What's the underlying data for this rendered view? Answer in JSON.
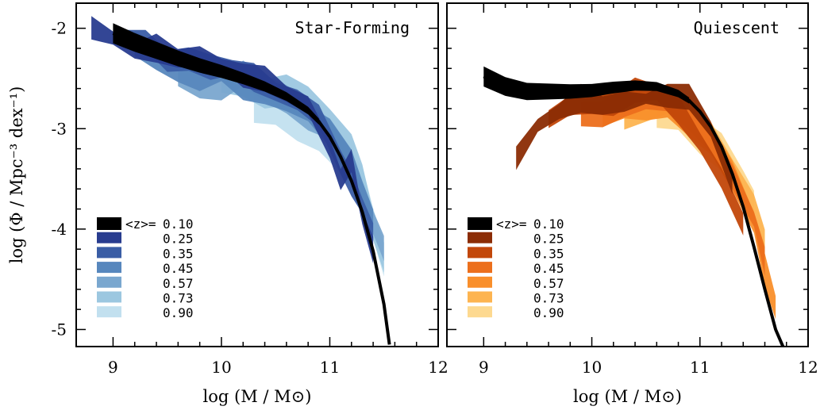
{
  "chart_data": [
    {
      "type": "area",
      "title": "Star-Forming",
      "xlabel": "log (M / M⊙)",
      "ylabel": "log (Φ / Mpc⁻³ dex⁻¹)",
      "xlim": [
        8.66,
        12.0
      ],
      "ylim": [
        -5.17,
        -1.75
      ],
      "xticks": [
        "9",
        "10",
        "11",
        "12"
      ],
      "yticks": [
        "-2",
        "-3",
        "-4",
        "-5"
      ],
      "legend": {
        "placement": "lower-left",
        "header": "<z>="
      },
      "series": [
        {
          "name": "0.10",
          "color": "#000000",
          "x": [
            9.0,
            9.2,
            9.4,
            9.6,
            9.8,
            10.0,
            10.2,
            10.4,
            10.6,
            10.8,
            10.9,
            11.0,
            11.1,
            11.2,
            11.3,
            11.4,
            11.5,
            11.55
          ],
          "y": [
            -2.05,
            -2.14,
            -2.22,
            -2.3,
            -2.37,
            -2.43,
            -2.5,
            -2.58,
            -2.68,
            -2.82,
            -2.93,
            -3.08,
            -3.28,
            -3.52,
            -3.83,
            -4.22,
            -4.75,
            -5.15
          ]
        },
        {
          "name": "0.25",
          "color": "#283c8f",
          "x": [
            8.8,
            9.0,
            9.2,
            9.4,
            9.6,
            9.8,
            10.0,
            10.2,
            10.4,
            10.6,
            10.8,
            11.0,
            11.1,
            11.2,
            11.3,
            11.4
          ],
          "y": [
            -2.0,
            -2.08,
            -2.25,
            -2.2,
            -2.28,
            -2.3,
            -2.35,
            -2.45,
            -2.52,
            -2.65,
            -2.8,
            -3.15,
            -3.5,
            -3.35,
            -3.9,
            -4.2
          ]
        },
        {
          "name": "0.35",
          "color": "#3a5da5",
          "x": [
            9.1,
            9.3,
            9.5,
            9.7,
            9.9,
            10.1,
            10.3,
            10.5,
            10.7,
            10.9,
            11.1,
            11.2,
            11.3,
            11.4
          ],
          "y": [
            -2.1,
            -2.15,
            -2.28,
            -2.3,
            -2.42,
            -2.4,
            -2.48,
            -2.6,
            -2.72,
            -2.92,
            -3.3,
            -3.55,
            -3.75,
            -4.05
          ]
        },
        {
          "name": "0.45",
          "color": "#5787bd",
          "x": [
            9.2,
            9.4,
            9.6,
            9.8,
            10.0,
            10.2,
            10.4,
            10.6,
            10.8,
            11.0,
            11.2,
            11.3,
            11.4
          ],
          "y": [
            -2.2,
            -2.25,
            -2.4,
            -2.52,
            -2.45,
            -2.55,
            -2.62,
            -2.72,
            -2.85,
            -3.02,
            -3.38,
            -3.62,
            -3.95
          ]
        },
        {
          "name": "0.57",
          "color": "#7aa7cf",
          "x": [
            9.6,
            9.8,
            10.0,
            10.2,
            10.4,
            10.6,
            10.8,
            11.0,
            11.2,
            11.4,
            11.5
          ],
          "y": [
            -2.4,
            -2.55,
            -2.6,
            -2.48,
            -2.55,
            -2.7,
            -2.9,
            -3.02,
            -3.38,
            -3.9,
            -4.2
          ]
        },
        {
          "name": "0.73",
          "color": "#9cc7e0",
          "x": [
            10.0,
            10.2,
            10.4,
            10.6,
            10.8,
            11.0,
            11.2,
            11.3,
            11.4,
            11.5
          ],
          "y": [
            -2.48,
            -2.55,
            -2.7,
            -2.58,
            -2.75,
            -2.9,
            -3.2,
            -3.55,
            -3.95,
            -4.3
          ]
        },
        {
          "name": "0.90",
          "color": "#c2e0ef",
          "x": [
            10.3,
            10.5,
            10.7,
            10.9,
            11.1,
            11.3,
            11.4,
            11.5
          ],
          "y": [
            -2.8,
            -2.85,
            -2.92,
            -3.05,
            -3.3,
            -3.55,
            -3.9,
            -4.3
          ]
        }
      ]
    },
    {
      "type": "area",
      "title": "Quiescent",
      "xlabel": "log (M / M⊙)",
      "ylabel": "",
      "xlim": [
        8.66,
        12.0
      ],
      "ylim": [
        -5.17,
        -1.75
      ],
      "xticks": [
        "9",
        "10",
        "11",
        "12"
      ],
      "yticks": [],
      "legend": {
        "placement": "lower-left",
        "header": "<z>="
      },
      "series": [
        {
          "name": "0.10",
          "color": "#000000",
          "x": [
            9.0,
            9.2,
            9.4,
            9.6,
            9.8,
            10.0,
            10.2,
            10.4,
            10.6,
            10.8,
            10.9,
            11.0,
            11.1,
            11.2,
            11.3,
            11.4,
            11.5,
            11.6,
            11.7,
            11.78
          ],
          "y": [
            -2.48,
            -2.58,
            -2.63,
            -2.63,
            -2.63,
            -2.62,
            -2.59,
            -2.57,
            -2.58,
            -2.65,
            -2.72,
            -2.83,
            -2.98,
            -3.18,
            -3.45,
            -3.78,
            -4.18,
            -4.6,
            -5.0,
            -5.2
          ]
        },
        {
          "name": "0.25",
          "color": "#8b2c04",
          "x": [
            9.3,
            9.5,
            9.7,
            9.9,
            10.1,
            10.3,
            10.5,
            10.7,
            10.9,
            11.1,
            11.3
          ],
          "y": [
            -3.3,
            -2.95,
            -2.85,
            -2.7,
            -2.75,
            -2.75,
            -2.7,
            -2.65,
            -2.7,
            -3.0,
            -3.6
          ]
        },
        {
          "name": "0.35",
          "color": "#c2470a",
          "x": [
            9.6,
            9.8,
            10.0,
            10.2,
            10.4,
            10.6,
            10.8,
            11.0,
            11.2,
            11.4
          ],
          "y": [
            -2.9,
            -2.8,
            -2.7,
            -2.75,
            -2.65,
            -2.65,
            -2.8,
            -3.1,
            -3.5,
            -4.0
          ]
        },
        {
          "name": "0.45",
          "color": "#ec6f1c",
          "x": [
            9.9,
            10.1,
            10.3,
            10.5,
            10.7,
            10.9,
            11.1,
            11.3,
            11.5,
            11.6
          ],
          "y": [
            -2.9,
            -2.82,
            -2.75,
            -2.7,
            -2.75,
            -2.85,
            -3.1,
            -3.5,
            -3.9,
            -4.3
          ]
        },
        {
          "name": "0.57",
          "color": "#f98f2b",
          "x": [
            10.1,
            10.3,
            10.5,
            10.7,
            10.9,
            11.1,
            11.3,
            11.5,
            11.6,
            11.7
          ],
          "y": [
            -2.8,
            -2.75,
            -2.8,
            -2.8,
            -2.9,
            -3.1,
            -3.5,
            -3.95,
            -4.4,
            -4.75
          ]
        },
        {
          "name": "0.73",
          "color": "#fdb450",
          "x": [
            10.3,
            10.5,
            10.7,
            10.9,
            11.1,
            11.3,
            11.5,
            11.6
          ],
          "y": [
            -2.85,
            -2.8,
            -2.75,
            -2.9,
            -3.1,
            -3.4,
            -3.8,
            -4.2
          ]
        },
        {
          "name": "0.90",
          "color": "#fdd990",
          "x": [
            10.6,
            10.8,
            11.0,
            11.2,
            11.4,
            11.5
          ],
          "y": [
            -2.85,
            -2.9,
            -3.05,
            -3.25,
            -3.55,
            -3.8
          ]
        }
      ]
    }
  ]
}
